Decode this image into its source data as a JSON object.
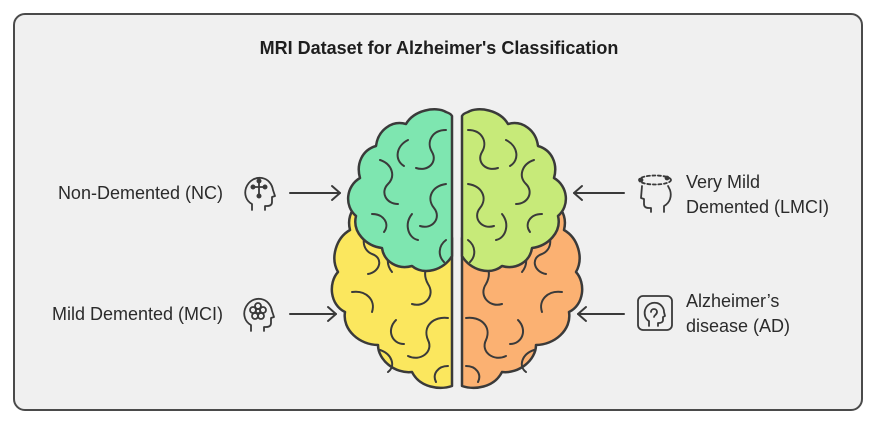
{
  "title": "MRI Dataset for Alzheimer's Classification",
  "labels": {
    "nc": "Non-Demented (NC)",
    "mci": "Mild Demented (MCI)",
    "lmci_line1": "Very Mild",
    "lmci_line2": "Demented (LMCI)",
    "ad_line1": "Alzheimer’s",
    "ad_line2": "disease (AD)"
  },
  "icons": {
    "nc": "head-with-brain-nodes-icon",
    "mci": "head-with-flower-icon",
    "lmci": "head-with-orbit-icon",
    "ad": "head-in-frame-icon"
  },
  "colors": {
    "nc": "#7ee6b0",
    "mci": "#fbe75e",
    "lmci": "#c7ea79",
    "ad": "#fbb172",
    "outline": "#3a3a3a",
    "background": "#f0f0f0"
  }
}
